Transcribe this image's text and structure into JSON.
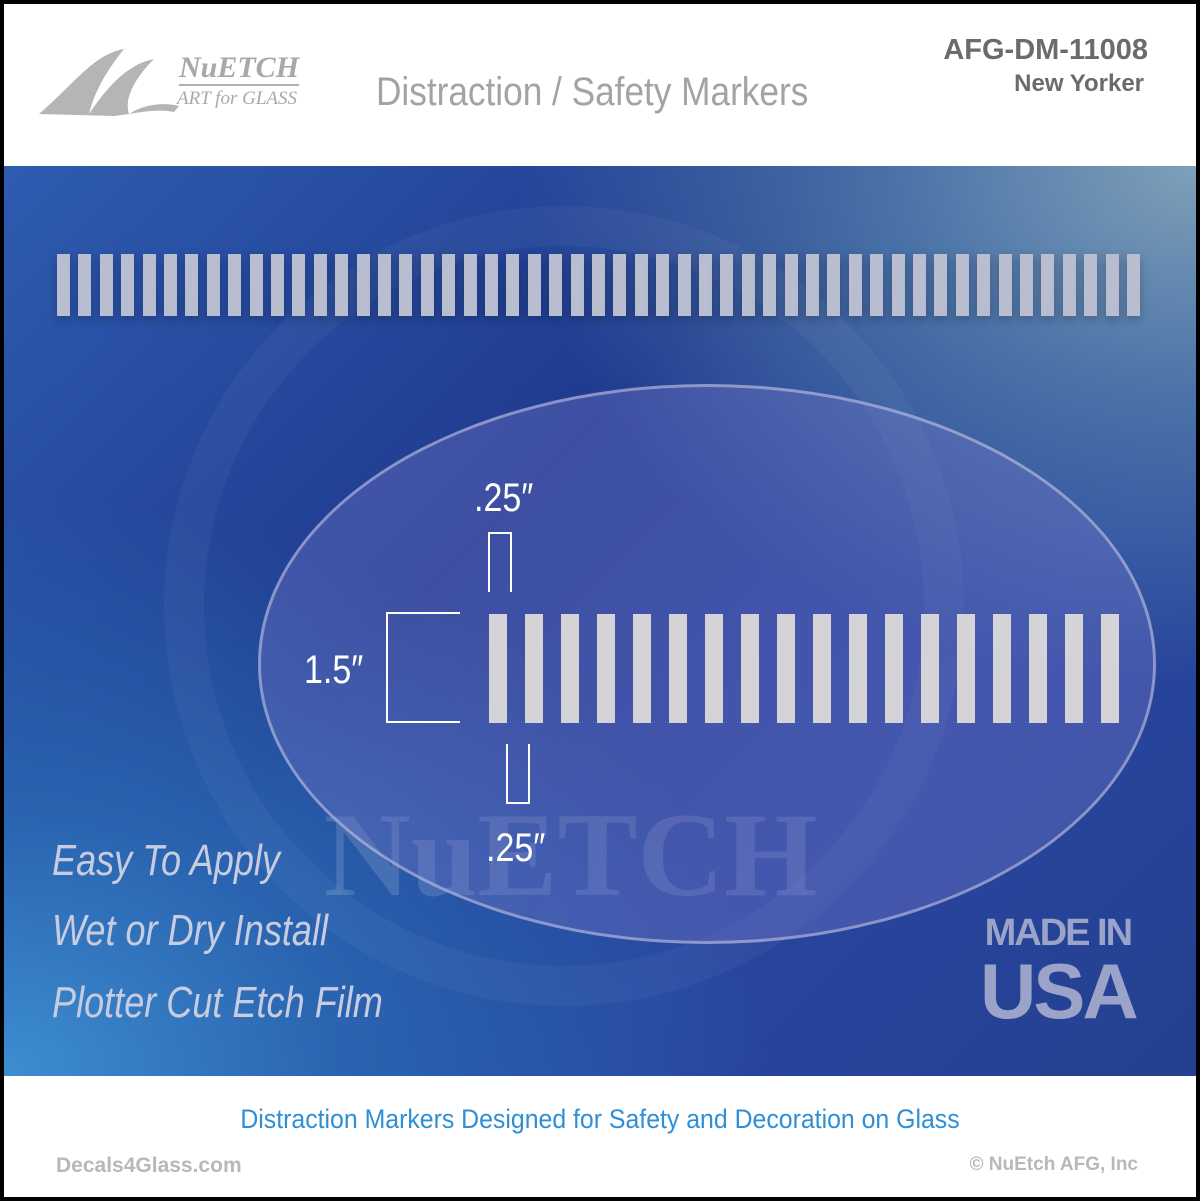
{
  "header": {
    "logo": {
      "name": "NuETCH",
      "subtitle": "ART for GLASS"
    },
    "title": "Distraction / Safety Markers",
    "sku": "AFG-DM-11008",
    "model": "New Yorker"
  },
  "product": {
    "top_stripe_count": 51,
    "detail_stripe_count": 18,
    "watermark": "NuETCH",
    "dimensions": {
      "stripe_width": ".25″",
      "stripe_gap": ".25″",
      "stripe_height": "1.5″"
    },
    "features": [
      "Easy To Apply",
      "Wet or Dry Install",
      "Plotter Cut Etch Film"
    ],
    "badge": {
      "line1": "MADE IN",
      "line2": "USA"
    }
  },
  "footer": {
    "tagline": "Distraction Markers Designed for Safety and Decoration on Glass",
    "website": "Decals4Glass.com",
    "copyright": "© NuEtch AFG, Inc"
  },
  "colors": {
    "panel_blue": "#1f3a8e",
    "tagline_blue": "#2e8fd6",
    "stripe": "#d4d4d8"
  }
}
